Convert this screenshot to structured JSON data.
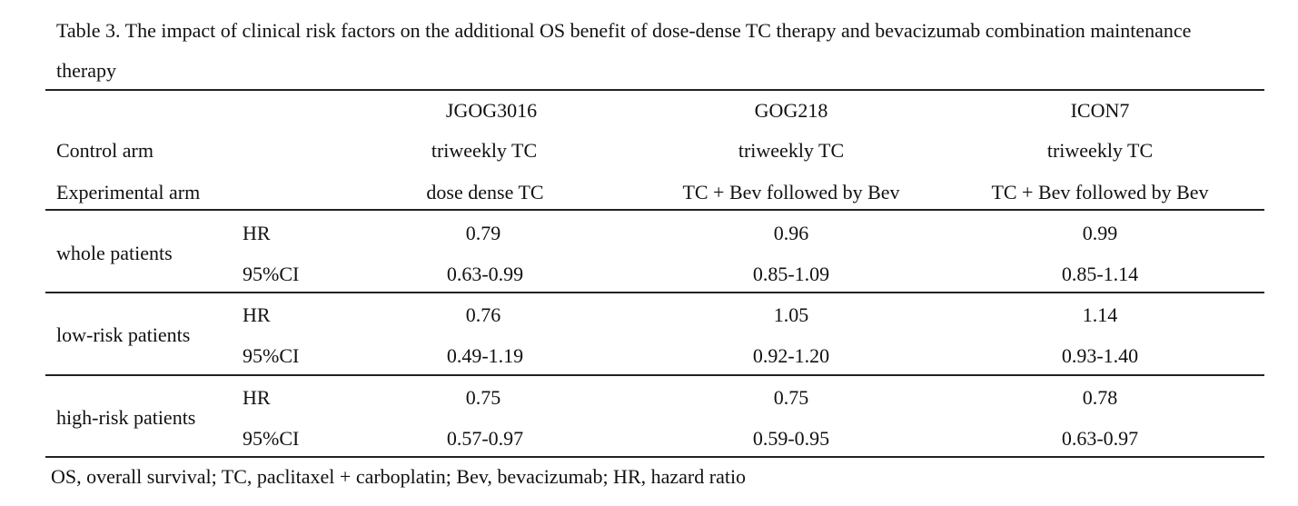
{
  "table": {
    "caption": "Table 3. The impact of clinical risk factors on the additional OS benefit of dose-dense TC therapy and bevacizumab combination maintenance therapy",
    "columns": [
      "JGOG3016",
      "GOG218",
      "ICON7"
    ],
    "control_arm": {
      "label": "Control arm",
      "values": [
        "triweekly TC",
        "triweekly TC",
        "triweekly TC"
      ]
    },
    "experimental_arm": {
      "label": "Experimental arm",
      "values": [
        "dose dense TC",
        "TC + Bev followed by Bev",
        "TC + Bev followed by Bev"
      ]
    },
    "groups": [
      {
        "label": "whole patients",
        "hr_label": "HR",
        "ci_label": "95%CI",
        "hr": [
          "0.79",
          "0.96",
          "0.99"
        ],
        "ci": [
          "0.63-0.99",
          "0.85-1.09",
          "0.85-1.14"
        ]
      },
      {
        "label": "low-risk patients",
        "hr_label": "HR",
        "ci_label": "95%CI",
        "hr": [
          "0.76",
          "1.05",
          "1.14"
        ],
        "ci": [
          "0.49-1.19",
          "0.92-1.20",
          "0.93-1.40"
        ]
      },
      {
        "label": "high-risk patients",
        "hr_label": "HR",
        "ci_label": "95%CI",
        "hr": [
          "0.75",
          "0.75",
          "0.78"
        ],
        "ci": [
          "0.57-0.97",
          "0.59-0.95",
          "0.63-0.97"
        ]
      }
    ],
    "footnote": "OS, overall survival; TC, paclitaxel + carboplatin; Bev, bevacizumab; HR, hazard ratio"
  }
}
